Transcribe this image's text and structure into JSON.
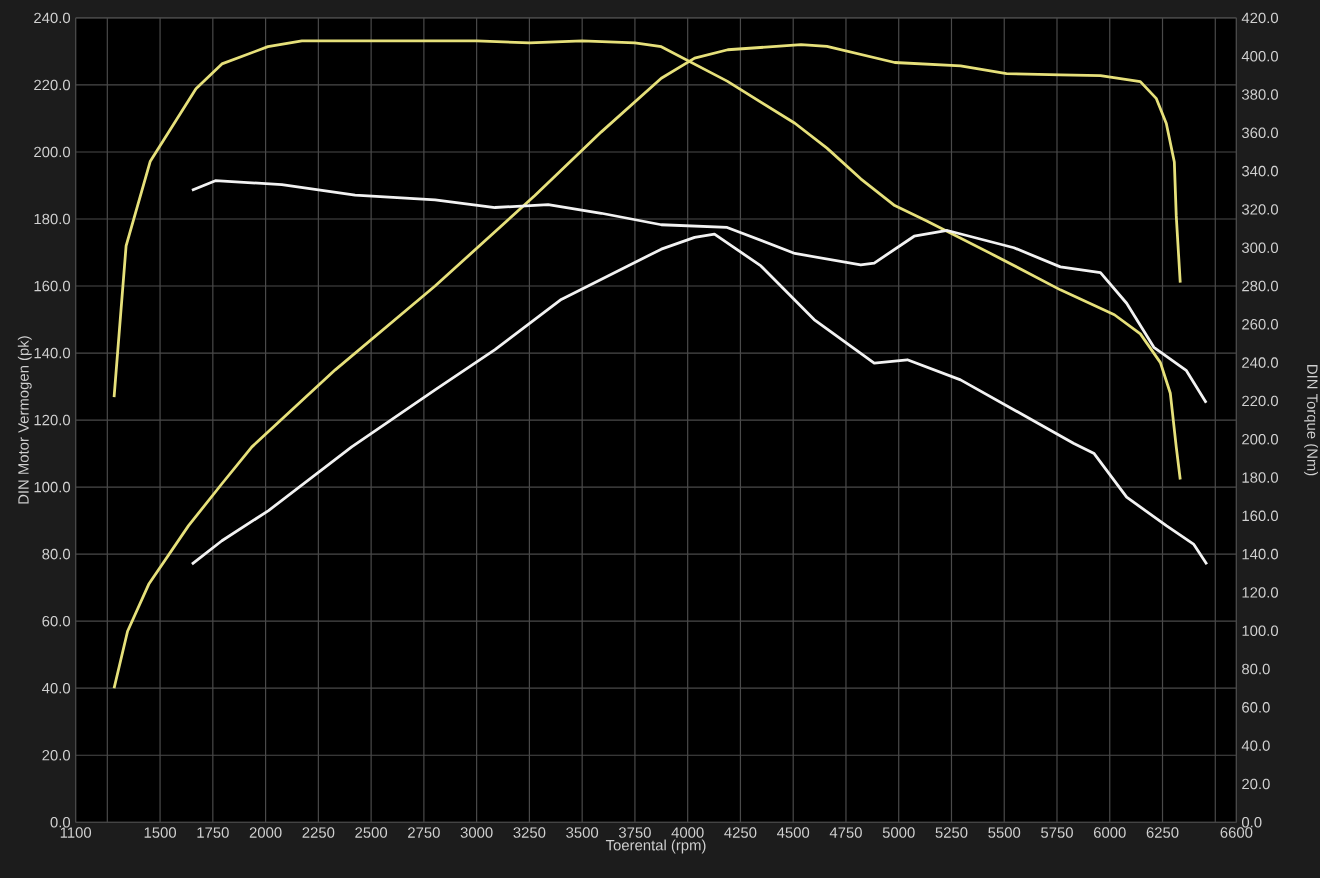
{
  "chart_data": {
    "type": "line",
    "xlabel": "Toerental (rpm)",
    "ylabel": "DIN Motor Vermogen (pk)",
    "y2label": "DIN Torque (Nm)",
    "xlim": [
      1100,
      6600
    ],
    "xticks": [
      1100,
      {
        "value": 1250,
        "label": null
      },
      1500,
      1750,
      2000,
      2250,
      2500,
      2750,
      3000,
      3250,
      3500,
      3750,
      4000,
      4250,
      4500,
      4750,
      5000,
      5250,
      5500,
      5750,
      6000,
      6250,
      {
        "value": 6500,
        "label": null
      },
      6600
    ],
    "ylim": [
      0,
      240
    ],
    "yticks": [
      {
        "value": 0,
        "label": "0.0"
      },
      {
        "value": 20,
        "label": "20.0"
      },
      {
        "value": 40,
        "label": "40.0"
      },
      {
        "value": 60,
        "label": "60.0"
      },
      {
        "value": 80,
        "label": "80.0"
      },
      {
        "value": 100,
        "label": "100.0"
      },
      {
        "value": 120,
        "label": "120.0"
      },
      {
        "value": 140,
        "label": "140.0"
      },
      {
        "value": 160,
        "label": "160.0"
      },
      {
        "value": 180,
        "label": "180.0"
      },
      {
        "value": 200,
        "label": "200.0"
      },
      {
        "value": 220,
        "label": "220.0"
      },
      {
        "value": 240,
        "label": "240.0"
      }
    ],
    "y2lim": [
      0,
      420
    ],
    "y2ticks": [
      {
        "value": 0,
        "label": "0.0"
      },
      {
        "value": 20,
        "label": "20.0"
      },
      {
        "value": 40,
        "label": "40.0"
      },
      {
        "value": 60,
        "label": "60.0"
      },
      {
        "value": 80,
        "label": "80.0"
      },
      {
        "value": 100,
        "label": "100.0"
      },
      {
        "value": 120,
        "label": "120.0"
      },
      {
        "value": 140,
        "label": "140.0"
      },
      {
        "value": 160,
        "label": "160.0"
      },
      {
        "value": 180,
        "label": "180.0"
      },
      {
        "value": 200,
        "label": "200.0"
      },
      {
        "value": 220,
        "label": "220.0"
      },
      {
        "value": 240,
        "label": "240.0"
      },
      {
        "value": 260,
        "label": "260.0"
      },
      {
        "value": 280,
        "label": "280.0"
      },
      {
        "value": 300,
        "label": "300.0"
      },
      {
        "value": 320,
        "label": "320.0"
      },
      {
        "value": 340,
        "label": "340.0"
      },
      {
        "value": 360,
        "label": "360.0"
      },
      {
        "value": 380,
        "label": "380.0"
      },
      {
        "value": 400,
        "label": "400.0"
      },
      {
        "value": 420,
        "label": "420.0"
      }
    ],
    "grid": true,
    "series": [
      {
        "color": "#e6e07a",
        "x": [
          1282,
          1346,
          1446,
          1635,
          1793,
          1935,
          2330,
          2803,
          3276,
          3591,
          3875,
          4033,
          4190,
          4537,
          4660,
          4981,
          5293,
          5511,
          5766,
          5956,
          6145,
          6220,
          6268,
          6306,
          6315,
          6334
        ],
        "values": [
          40,
          57,
          71,
          88.5,
          101,
          112,
          135,
          160,
          187,
          206,
          222,
          228,
          230.5,
          232,
          231.5,
          226.7,
          225.7,
          223.4,
          223,
          222.8,
          221,
          216,
          208.5,
          197,
          181,
          161
        ]
      },
      {
        "color": "#e6e07a",
        "axis": "y2",
        "x": [
          1282,
          1339,
          1453,
          1670,
          1793,
          2011,
          2172,
          2500,
          2750,
          3000,
          3250,
          3500,
          3750,
          3875,
          4187,
          4508,
          4660,
          4820,
          4981,
          5133,
          5454,
          5766,
          6022,
          6145,
          6240,
          6287,
          6315,
          6334
        ],
        "values": [
          222,
          301,
          345,
          383,
          396,
          405,
          408,
          408,
          408,
          408,
          407,
          408,
          407,
          405,
          387,
          365,
          352,
          336,
          322,
          314,
          296,
          278,
          265,
          255,
          240,
          224,
          196,
          179
        ]
      },
      {
        "color": "#f2f2f2",
        "x": [
          1651,
          1793,
          2014,
          2408,
          2803,
          3087,
          3401,
          3875,
          4033,
          4127,
          4347,
          4599,
          4884,
          5041,
          5293,
          5605,
          5830,
          5926,
          6080,
          6268,
          6397,
          6460
        ],
        "values": [
          77,
          84,
          93,
          112,
          129,
          141,
          156,
          171,
          174.5,
          175.5,
          166,
          150,
          137,
          138,
          132,
          121,
          113,
          110,
          97,
          88.5,
          83,
          77
        ]
      },
      {
        "color": "#f2f2f2",
        "axis": "y2",
        "x": [
          1651,
          1762,
          2077,
          2424,
          2803,
          3087,
          3339,
          3591,
          3875,
          4187,
          4508,
          4820,
          4884,
          5073,
          5230,
          5546,
          5766,
          5956,
          6080,
          6209,
          6362,
          6457
        ],
        "values": [
          330,
          335,
          333,
          327.5,
          325,
          321,
          322.5,
          318,
          312,
          310.6,
          297,
          291,
          292,
          306,
          309,
          300,
          290,
          287,
          271,
          248,
          236,
          219
        ]
      }
    ]
  }
}
